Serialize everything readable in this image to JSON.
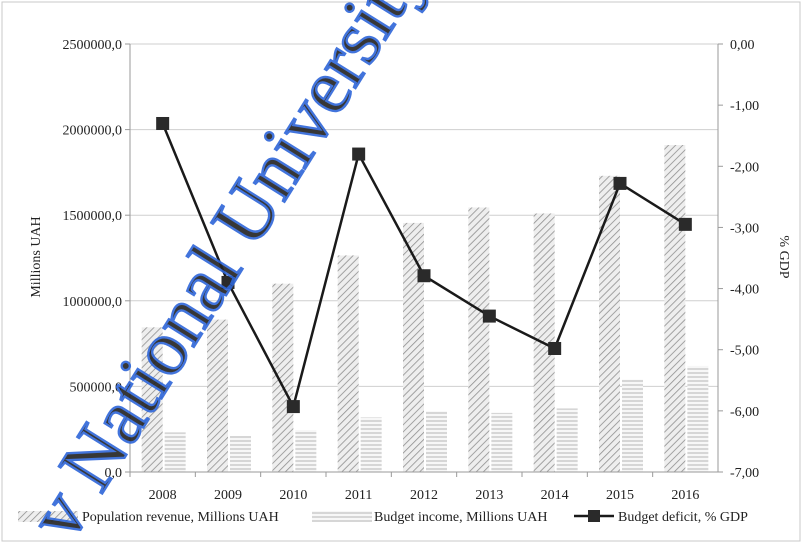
{
  "chart_data": {
    "type": "bar",
    "categories": [
      "2008",
      "2009",
      "2010",
      "2011",
      "2012",
      "2013",
      "2014",
      "2015",
      "2016"
    ],
    "series": [
      {
        "name": "Population revenue, Millions UAH",
        "type": "bar",
        "axis": "left",
        "values": [
          845000,
          890000,
          1100000,
          1265000,
          1455000,
          1545000,
          1510000,
          1730000,
          1910000
        ]
      },
      {
        "name": "Budget income, Millions UAH",
        "type": "bar",
        "axis": "left",
        "values": [
          230000,
          210000,
          245000,
          320000,
          355000,
          345000,
          370000,
          540000,
          620000
        ]
      },
      {
        "name": "Budget deficit, % GDP",
        "type": "line",
        "axis": "right",
        "values": [
          -1.3,
          -3.9,
          -5.93,
          -1.8,
          -3.79,
          -4.45,
          -4.98,
          -2.28,
          -2.95
        ]
      }
    ],
    "y_left": {
      "label": "Millions UAH",
      "min": 0,
      "max": 2500000,
      "ticks": [
        0,
        500000,
        1000000,
        1500000,
        2000000,
        2500000
      ],
      "tick_labels": [
        "0,0",
        "500000,0",
        "1000000,0",
        "1500000,0",
        "2000000,0",
        "2500000,0"
      ]
    },
    "y_right": {
      "label": "% GDP",
      "min": -7,
      "max": 0,
      "ticks": [
        0,
        -1,
        -2,
        -3,
        -4,
        -5,
        -6,
        -7
      ],
      "tick_labels": [
        "0,00",
        "-1,00",
        "-2,00",
        "-3,00",
        "-4,00",
        "-5,00",
        "-6,00",
        "-7,00"
      ]
    },
    "grid": true,
    "legend_position": "bottom"
  },
  "watermark": {
    "text": "v National University"
  },
  "colors": {
    "axis": "#b9b9b9",
    "grid": "#cfcfcf",
    "line": "#1a1a1a",
    "bar_stroke": "#9a9a9a",
    "watermark": "#2e66d9"
  }
}
